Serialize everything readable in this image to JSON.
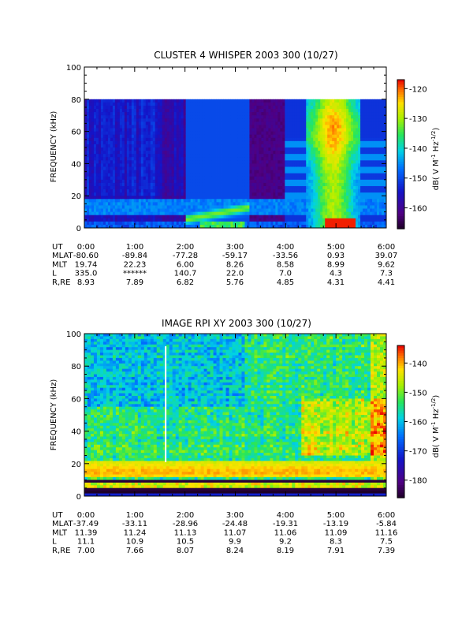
{
  "chart_data": [
    {
      "type": "heatmap",
      "title": "CLUSTER 4 WHISPER 2003 300 (10/27)",
      "ylabel": "FREQUENCY (kHz)",
      "ylim": [
        0,
        100
      ],
      "y_ticks": [
        "0",
        "20",
        "40",
        "60",
        "80",
        "100"
      ],
      "x_ticks": [
        "0:00",
        "1:00",
        "2:00",
        "3:00",
        "4:00",
        "5:00",
        "6:00"
      ],
      "data_ceiling_khz": 80,
      "colorbar": {
        "label": "dB( V M",
        "label_sup1": "-1",
        "label_mid": " Hz",
        "label_sup2": "-1/2",
        "label_end": ")",
        "range": [
          -167,
          -117
        ],
        "ticks": [
          "-120",
          "-130",
          "-140",
          "-150",
          "-160"
        ],
        "tick_values": [
          -120,
          -130,
          -140,
          -150,
          -160
        ]
      },
      "ephemeris": {
        "labels": [
          "UT",
          "MLAT",
          "MLT",
          "L",
          "R,RE"
        ],
        "rows": [
          [
            "0:00",
            "1:00",
            "2:00",
            "3:00",
            "4:00",
            "5:00",
            "6:00"
          ],
          [
            "-80.60",
            "-89.84",
            "-77.28",
            "-59.17",
            "-33.56",
            "0.93",
            "39.07"
          ],
          [
            "19.74",
            "22.23",
            "6.00",
            "8.26",
            "8.58",
            "8.99",
            "9.62"
          ],
          [
            "335.0",
            "******",
            "140.7",
            "22.0",
            "7.0",
            "4.3",
            "7.3"
          ],
          [
            "8.93",
            "7.89",
            "6.82",
            "5.76",
            "4.85",
            "4.31",
            "4.41"
          ]
        ]
      },
      "features": {
        "background_db": -163,
        "low_band_db": -148,
        "hot_spot_db": -118,
        "emission_column_center_ut": 4.95
      }
    },
    {
      "type": "heatmap",
      "title": "IMAGE RPI XY 2003 300 (10/27)",
      "ylabel": "FREQUENCY (kHz)",
      "ylim": [
        0,
        100
      ],
      "y_ticks": [
        "0",
        "20",
        "40",
        "60",
        "80",
        "100"
      ],
      "x_ticks": [
        "0:00",
        "1:00",
        "2:00",
        "3:00",
        "4:00",
        "5:00",
        "6:00"
      ],
      "colorbar": {
        "label": "dB( V M",
        "label_sup1": "-1",
        "label_mid": " Hz",
        "label_sup2": "-1/2",
        "label_end": ")",
        "range": [
          -186,
          -134
        ],
        "ticks": [
          "-140",
          "-150",
          "-160",
          "-170",
          "-180"
        ],
        "tick_values": [
          -140,
          -150,
          -160,
          -170,
          -180
        ]
      },
      "ephemeris": {
        "labels": [
          "UT",
          "MLAT",
          "MLT",
          "L",
          "R,RE"
        ],
        "rows": [
          [
            "0:00",
            "1:00",
            "2:00",
            "3:00",
            "4:00",
            "5:00",
            "6:00"
          ],
          [
            "-37.49",
            "-33.11",
            "-28.96",
            "-24.48",
            "-19.31",
            "-13.19",
            "-5.84"
          ],
          [
            "11.39",
            "11.24",
            "11.13",
            "11.07",
            "11.06",
            "11.09",
            "11.16"
          ],
          [
            "11.1",
            "10.9",
            "10.5",
            "9.9",
            "9.2",
            "8.3",
            "7.5"
          ],
          [
            "7.00",
            "7.66",
            "8.07",
            "8.24",
            "8.19",
            "7.91",
            "7.39"
          ]
        ]
      },
      "features": {
        "background_db": -160,
        "band_db": -147,
        "strong_band_db": -140,
        "white_gap_ut": 1.6
      }
    }
  ]
}
